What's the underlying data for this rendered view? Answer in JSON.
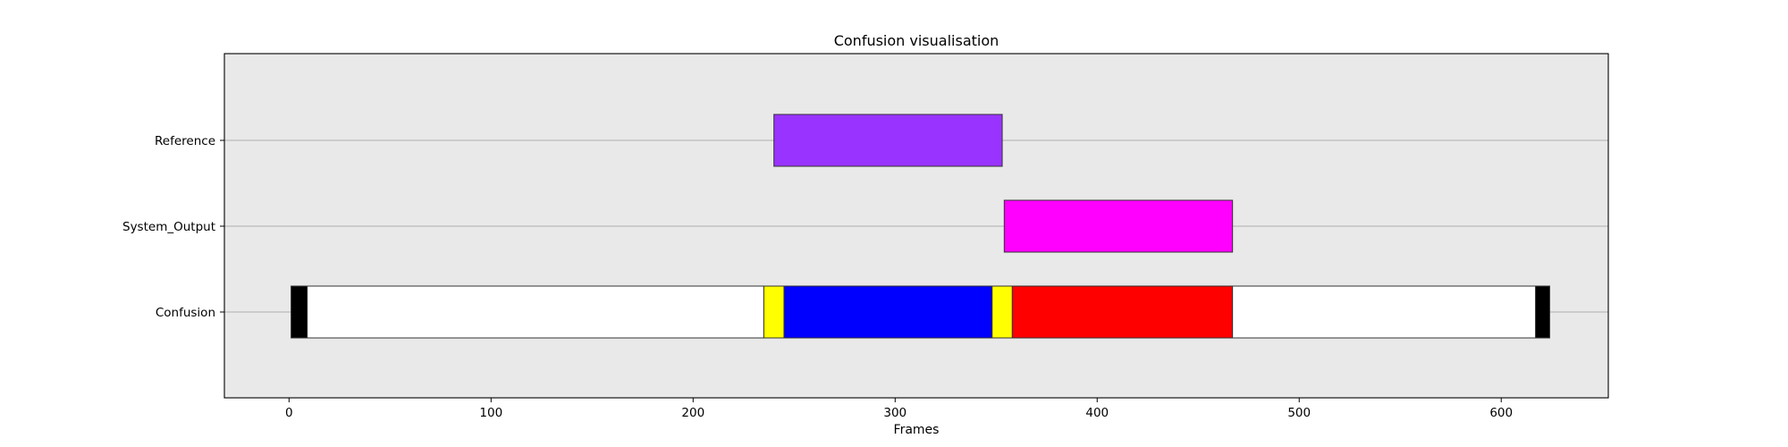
{
  "chart_data": {
    "type": "broken_barh",
    "title": "Confusion visualisation",
    "xlabel": "Frames",
    "ylabel": "",
    "xlim": [
      -32,
      653
    ],
    "x_ticks": [
      0,
      100,
      200,
      300,
      400,
      500,
      600
    ],
    "x_tick_labels": [
      "0",
      "100",
      "200",
      "300",
      "400",
      "500",
      "600"
    ],
    "grid": "horizontal",
    "colors": {
      "background": "#e9e9e9",
      "gridline": "#b0b0b0",
      "edge": "#333333"
    },
    "rows": [
      {
        "label": "Reference",
        "segments": [
          {
            "start": 240,
            "end": 353,
            "color": "#9933ff"
          }
        ]
      },
      {
        "label": "System_Output",
        "segments": [
          {
            "start": 354,
            "end": 467,
            "color": "#ff00ff"
          }
        ]
      },
      {
        "label": "Confusion",
        "segments": [
          {
            "start": 1,
            "end": 9,
            "color": "#000000"
          },
          {
            "start": 9,
            "end": 235,
            "color": "#ffffff"
          },
          {
            "start": 235,
            "end": 245,
            "color": "#ffff00"
          },
          {
            "start": 245,
            "end": 348,
            "color": "#0000ff"
          },
          {
            "start": 348,
            "end": 358,
            "color": "#ffff00"
          },
          {
            "start": 358,
            "end": 467,
            "color": "#ff0000"
          },
          {
            "start": 467,
            "end": 617,
            "color": "#ffffff"
          },
          {
            "start": 617,
            "end": 624,
            "color": "#000000"
          }
        ]
      }
    ]
  }
}
